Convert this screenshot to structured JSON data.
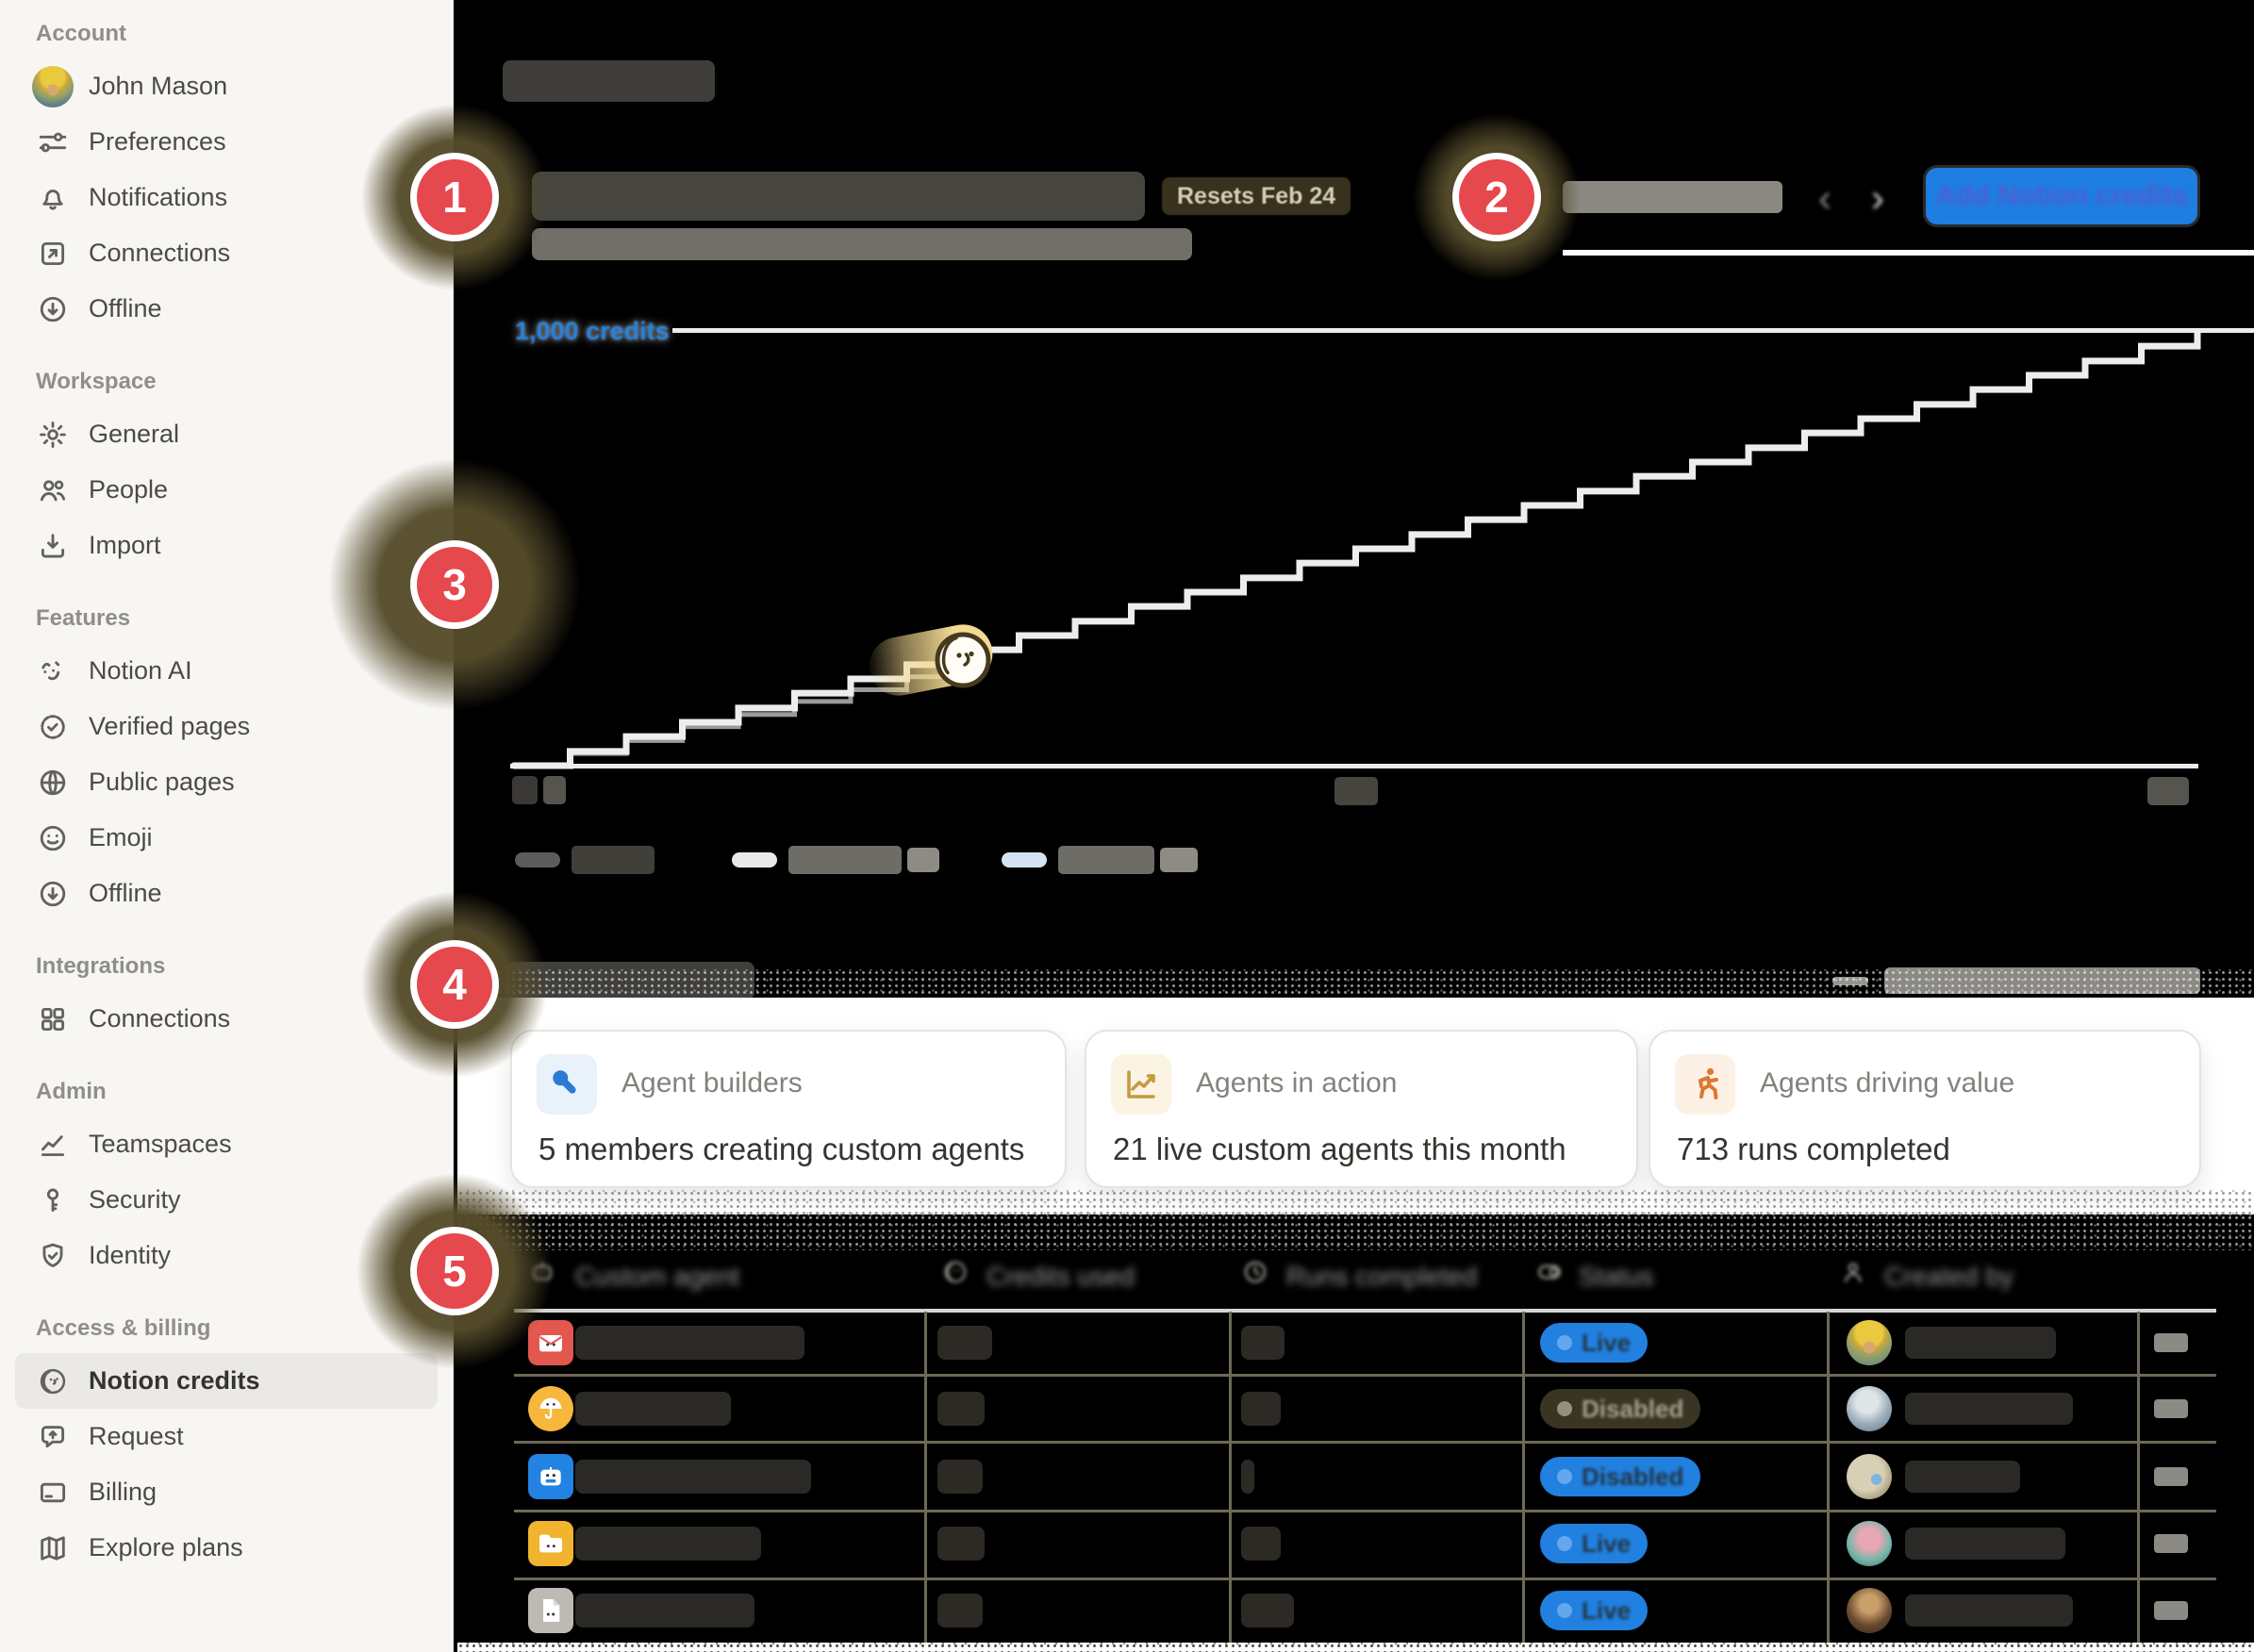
{
  "app": {
    "name": "Notion settings",
    "selected_nav": "Notion credits"
  },
  "sidebar": {
    "sections": [
      {
        "label": "Account",
        "items": [
          {
            "label": "John Mason",
            "icon": "avatar"
          },
          {
            "label": "Preferences",
            "icon": "sliders"
          },
          {
            "label": "Notifications",
            "icon": "bell"
          },
          {
            "label": "Connections",
            "icon": "arrow-up-right-box"
          },
          {
            "label": "Offline",
            "icon": "arrow-down-circle"
          }
        ]
      },
      {
        "label": "Workspace",
        "items": [
          {
            "label": "General",
            "icon": "gear"
          },
          {
            "label": "People",
            "icon": "people"
          },
          {
            "label": "Import",
            "icon": "import"
          }
        ]
      },
      {
        "label": "Features",
        "items": [
          {
            "label": "Notion AI",
            "icon": "notion-ai-face"
          },
          {
            "label": "Verified pages",
            "icon": "verified-badge"
          },
          {
            "label": "Public pages",
            "icon": "globe"
          },
          {
            "label": "Emoji",
            "icon": "smiley"
          },
          {
            "label": "Offline",
            "icon": "arrow-down-circle"
          }
        ]
      },
      {
        "label": "Integrations",
        "items": [
          {
            "label": "Connections",
            "icon": "grid"
          }
        ]
      },
      {
        "label": "Admin",
        "items": [
          {
            "label": "Teamspaces",
            "icon": "line-chart"
          },
          {
            "label": "Security",
            "icon": "key"
          },
          {
            "label": "Identity",
            "icon": "shield-check"
          }
        ]
      },
      {
        "label": "Access & billing",
        "items": [
          {
            "label": "Notion credits",
            "icon": "credit-coin",
            "active": true
          },
          {
            "label": "Request",
            "icon": "request-bubble"
          },
          {
            "label": "Billing",
            "icon": "credit-card"
          },
          {
            "label": "Explore plans",
            "icon": "map"
          }
        ]
      }
    ]
  },
  "header": {
    "resets_badge": "Resets Feb 24",
    "add_credits_button": "Add Notion credits",
    "nav_prev": "‹",
    "nav_next": "›"
  },
  "chart_data": {
    "type": "line",
    "title_redacted": true,
    "y_gridline_label": "1,000 credits",
    "ylim": [
      0,
      1000
    ],
    "x_range_days": [
      0,
      30
    ],
    "x_tick_labels_redacted": 3,
    "legend_position": "bottom-left",
    "series": [
      {
        "name": "credits-used-to-date (label redacted)",
        "color": "#9a9a9a",
        "style": "step",
        "x": [
          0,
          1,
          2,
          3,
          4,
          5,
          6,
          7,
          8
        ],
        "values": [
          0,
          28,
          58,
          90,
          118,
          148,
          175,
          205,
          243
        ]
      },
      {
        "name": "projected-usage (label redacted)",
        "color": "#ededed",
        "style": "step",
        "x": [
          0,
          1,
          2,
          3,
          4,
          5,
          6,
          7,
          8,
          9,
          10,
          11,
          12,
          13,
          14,
          15,
          16,
          17,
          18,
          19,
          20,
          21,
          22,
          23,
          24,
          25,
          26,
          27,
          28,
          29,
          30
        ],
        "values": [
          0,
          33,
          67,
          100,
          133,
          167,
          200,
          233,
          267,
          300,
          333,
          367,
          400,
          433,
          467,
          500,
          533,
          567,
          600,
          633,
          667,
          700,
          733,
          767,
          800,
          833,
          867,
          900,
          933,
          967,
          1000
        ]
      },
      {
        "name": "third-series (label redacted, not visible)",
        "color": "#d3e3f3",
        "values": []
      }
    ],
    "marker": {
      "x": 8,
      "y": 243,
      "icon": "notion-credit-coin"
    }
  },
  "legend": {
    "entries": [
      {
        "color": "#5c5c5c",
        "label": ""
      },
      {
        "color": "#e9e9e7",
        "label": ""
      },
      {
        "color": "#d3e3f3",
        "label": ""
      }
    ]
  },
  "cards": [
    {
      "icon": "wrench",
      "title": "Agent builders",
      "value": "5 members creating custom agents"
    },
    {
      "icon": "trend-chart",
      "title": "Agents in action",
      "value": "21 live custom agents this month"
    },
    {
      "icon": "runner",
      "title": "Agents driving value",
      "value": "713 runs completed"
    }
  ],
  "table": {
    "columns": [
      {
        "label": "Custom agent",
        "icon": "agent"
      },
      {
        "label": "Credits used",
        "icon": "coin"
      },
      {
        "label": "Runs completed",
        "icon": "clock"
      },
      {
        "label": "Status",
        "icon": "toggle"
      },
      {
        "label": "Created by",
        "icon": "person"
      }
    ],
    "rows": [
      {
        "agent_icon": "mail-agent",
        "status": "Live",
        "variant": "live"
      },
      {
        "agent_icon": "umbrella-agent",
        "status": "Disabled",
        "variant": "dark"
      },
      {
        "agent_icon": "robot-agent",
        "status": "Disabled",
        "variant": "live"
      },
      {
        "agent_icon": "folder-agent",
        "status": "Live",
        "variant": "live"
      },
      {
        "agent_icon": "page-agent",
        "status": "Live",
        "variant": "live"
      }
    ],
    "row_action": "—"
  },
  "annotations": {
    "badges": [
      "1",
      "2",
      "3",
      "4",
      "5"
    ]
  },
  "colors": {
    "accent_blue": "#2383e2",
    "annotation_red": "#e5484d",
    "sidebar_bg": "#f7f6f3",
    "badge_live_bg": "#2180e0",
    "badge_dark_bg": "#3a3424",
    "resets_badge_bg": "#37311d",
    "chart_projected_line": "#ededed",
    "chart_used_line": "#9a9a9a",
    "chart_gridline": "#e9ecef",
    "marker_gold": "#f3d993",
    "card_wrench_blue": "#2b7bd4",
    "card_chart_gold": "#c49a41",
    "card_runner_orange": "#e0762f"
  }
}
